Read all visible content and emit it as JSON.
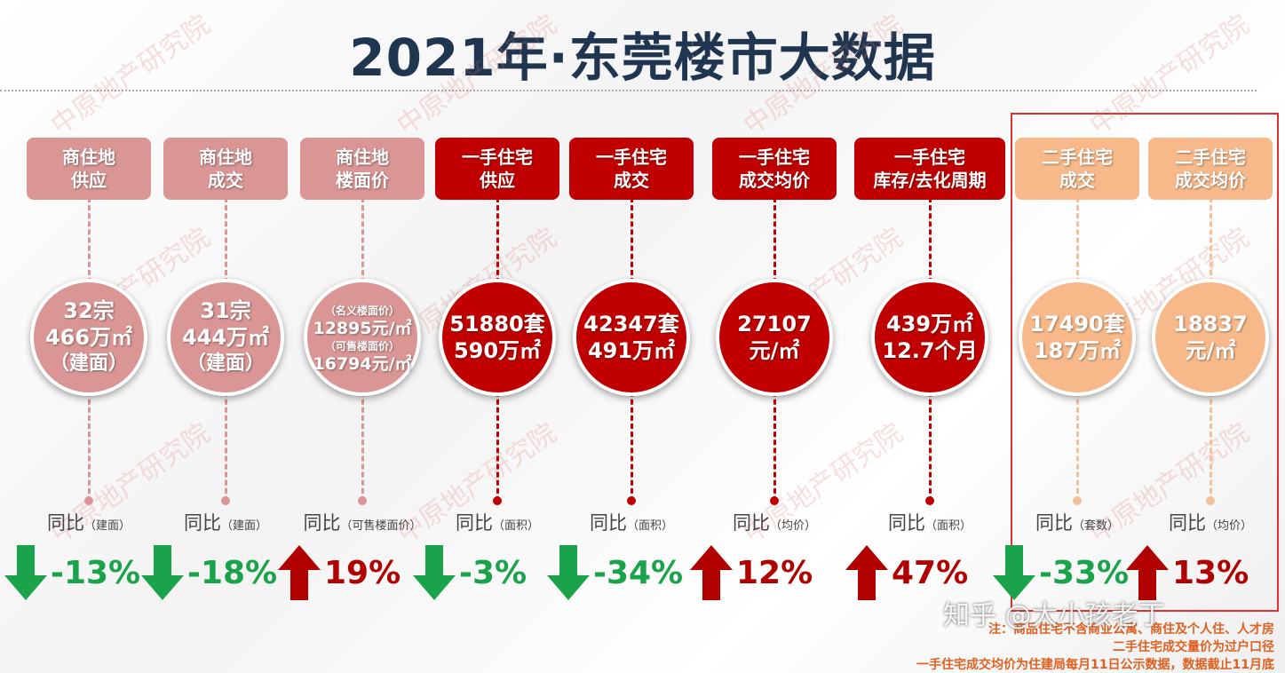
{
  "header": {
    "title": "2021年·东莞楼市大数据"
  },
  "watermark": "中原地产研究院",
  "credit": "知乎 @大小孩老丁",
  "columns": [
    {
      "label": [
        "商住地",
        "供应"
      ],
      "circle": [
        "32宗",
        "466万㎡",
        "（建面）"
      ],
      "yoy": "同比",
      "yoy_note": "（建面）",
      "change": "-13%",
      "color": "#d99694"
    },
    {
      "label": [
        "商住地",
        "成交"
      ],
      "circle": [
        "31宗",
        "444万㎡",
        "（建面）"
      ],
      "yoy": "同比",
      "yoy_note": "（建面）",
      "change": "-18%",
      "color": "#d99694"
    },
    {
      "label": [
        "商住地",
        "楼面价"
      ],
      "circle": [
        "（名义楼面价）",
        "12895元/㎡",
        "（可售楼面价）",
        "16794元/㎡"
      ],
      "yoy": "同比",
      "yoy_note": "（可售楼面价）",
      "change": "19%",
      "color": "#d99694"
    },
    {
      "label": [
        "一手住宅",
        "供应"
      ],
      "circle": [
        "51880套",
        "590万㎡"
      ],
      "yoy": "同比",
      "yoy_note": "（面积）",
      "change": "-3%",
      "color": "#c00000"
    },
    {
      "label": [
        "一手住宅",
        "成交"
      ],
      "circle": [
        "42347套",
        "491万㎡"
      ],
      "yoy": "同比",
      "yoy_note": "（面积）",
      "change": "-34%",
      "color": "#c00000"
    },
    {
      "label": [
        "一手住宅",
        "成交均价"
      ],
      "circle": [
        "27107",
        "元/㎡"
      ],
      "yoy": "同比",
      "yoy_note": "（均价）",
      "change": "12%",
      "color": "#c00000"
    },
    {
      "label": [
        "一手住宅",
        "库存/去化周期"
      ],
      "circle": [
        "439万㎡",
        "12.7个月"
      ],
      "yoy": "同比",
      "yoy_note": "（面积）",
      "change": "47%",
      "color": "#c00000"
    },
    {
      "label": [
        "二手住宅",
        "成交"
      ],
      "circle": [
        "17490套",
        "187万㎡"
      ],
      "yoy": "同比",
      "yoy_note": "（套数）",
      "change": "-33%",
      "color": "#f8b98a"
    },
    {
      "label": [
        "二手住宅",
        "成交均价"
      ],
      "circle": [
        "18837",
        "元/㎡"
      ],
      "yoy": "同比",
      "yoy_note": "（均价）",
      "change": "13%",
      "color": "#f8b98a"
    }
  ],
  "notes": [
    "注：商品住宅不含商业公寓、商住及个人住、人才房",
    "二手住宅成交量价为过户口径",
    "一手住宅成交均价为住建局每月11日公示数据，数据截止11月底"
  ]
}
